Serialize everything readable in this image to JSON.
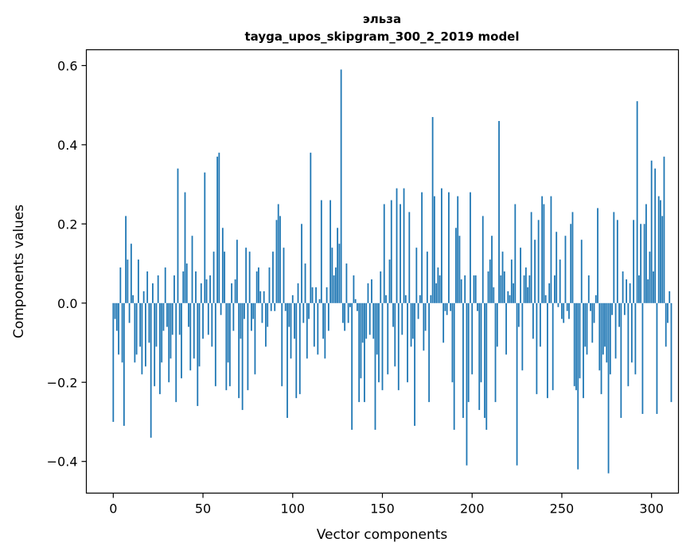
{
  "chart_data": {
    "type": "bar",
    "title": "эльза",
    "subtitle": "tayga_upos_skipgram_300_2_2019 model",
    "xlabel": "Vector components",
    "ylabel": "Components values",
    "xlim": [
      -15,
      315
    ],
    "ylim": [
      -0.48,
      0.64
    ],
    "xticks": [
      0,
      50,
      100,
      150,
      200,
      250,
      300
    ],
    "yticks": [
      -0.4,
      -0.2,
      0.0,
      0.2,
      0.4,
      0.6
    ],
    "ytick_labels": [
      "−0.4",
      "−0.2",
      "0.0",
      "0.2",
      "0.4",
      "0.6"
    ],
    "bar_color": "#1f77b4",
    "grid": false,
    "values": [
      -0.3,
      -0.04,
      -0.07,
      -0.13,
      0.09,
      -0.15,
      -0.31,
      0.22,
      0.11,
      -0.05,
      0.15,
      0.02,
      -0.15,
      -0.13,
      0.11,
      -0.11,
      -0.18,
      0.03,
      -0.16,
      0.08,
      -0.1,
      -0.34,
      0.05,
      -0.21,
      -0.11,
      0.07,
      -0.23,
      -0.15,
      -0.07,
      0.09,
      -0.06,
      -0.2,
      -0.14,
      -0.08,
      0.07,
      -0.25,
      0.34,
      -0.08,
      -0.19,
      0.08,
      0.28,
      0.1,
      -0.06,
      -0.17,
      0.17,
      -0.14,
      0.08,
      -0.26,
      -0.16,
      0.05,
      -0.09,
      0.33,
      0.06,
      -0.08,
      0.07,
      -0.11,
      0.13,
      -0.21,
      0.37,
      0.38,
      -0.03,
      0.19,
      0.13,
      -0.22,
      -0.15,
      -0.21,
      0.05,
      -0.07,
      0.06,
      0.16,
      -0.24,
      -0.09,
      -0.27,
      -0.04,
      0.14,
      -0.22,
      0.13,
      -0.07,
      -0.04,
      -0.18,
      0.08,
      0.09,
      0.03,
      -0.05,
      0.03,
      -0.11,
      -0.06,
      0.09,
      -0.02,
      0.13,
      -0.02,
      0.21,
      0.25,
      0.22,
      -0.21,
      0.14,
      -0.02,
      -0.29,
      -0.06,
      -0.14,
      0.02,
      -0.09,
      -0.24,
      0.05,
      -0.23,
      0.2,
      -0.05,
      0.1,
      -0.14,
      -0.04,
      0.38,
      0.04,
      -0.11,
      0.04,
      -0.13,
      0.01,
      0.26,
      -0.09,
      -0.14,
      0.04,
      -0.07,
      0.26,
      0.14,
      0.07,
      0.09,
      0.19,
      0.15,
      0.59,
      -0.05,
      -0.07,
      0.1,
      -0.05,
      -0.01,
      -0.32,
      0.07,
      0.01,
      -0.02,
      -0.25,
      -0.19,
      -0.1,
      -0.25,
      -0.09,
      0.05,
      -0.08,
      0.06,
      -0.09,
      -0.32,
      -0.13,
      -0.2,
      0.08,
      -0.22,
      0.25,
      0.02,
      -0.18,
      0.11,
      0.26,
      -0.06,
      -0.16,
      0.29,
      -0.22,
      0.25,
      -0.08,
      0.29,
      0.02,
      -0.2,
      0.23,
      -0.11,
      -0.09,
      -0.31,
      0.14,
      -0.04,
      0.02,
      0.28,
      -0.12,
      -0.07,
      0.13,
      -0.25,
      0.02,
      0.47,
      0.27,
      0.05,
      0.09,
      0.07,
      0.29,
      -0.1,
      -0.02,
      -0.03,
      0.28,
      -0.02,
      -0.2,
      -0.32,
      0.19,
      0.27,
      0.17,
      0.06,
      -0.29,
      0.07,
      -0.41,
      -0.25,
      0.28,
      -0.18,
      0.07,
      0.07,
      -0.02,
      -0.27,
      -0.2,
      0.22,
      -0.29,
      -0.32,
      0.08,
      0.11,
      0.17,
      0.04,
      -0.25,
      -0.11,
      0.46,
      0.07,
      0.13,
      0.08,
      -0.13,
      0.03,
      0.02,
      0.11,
      0.05,
      0.25,
      -0.41,
      -0.06,
      0.14,
      -0.17,
      0.07,
      0.09,
      0.04,
      0.07,
      0.23,
      -0.09,
      0.16,
      -0.23,
      0.21,
      -0.11,
      0.27,
      0.25,
      0.02,
      -0.24,
      0.05,
      0.27,
      -0.22,
      0.07,
      0.18,
      -0.01,
      0.11,
      -0.04,
      -0.05,
      0.17,
      -0.02,
      -0.04,
      0.2,
      0.23,
      -0.21,
      -0.22,
      -0.42,
      -0.19,
      0.16,
      -0.24,
      -0.11,
      -0.13,
      0.07,
      -0.02,
      -0.1,
      -0.05,
      0.02,
      0.24,
      -0.17,
      -0.23,
      -0.13,
      -0.11,
      -0.15,
      -0.43,
      -0.18,
      -0.03,
      0.23,
      -0.14,
      0.21,
      -0.06,
      -0.29,
      0.08,
      -0.03,
      0.06,
      -0.21,
      0.05,
      -0.15,
      0.21,
      -0.18,
      0.51,
      0.07,
      0.2,
      -0.28,
      0.2,
      0.25,
      0.06,
      0.13,
      0.36,
      0.08,
      0.34,
      -0.28,
      0.27,
      0.26,
      0.22,
      0.37,
      -0.11,
      -0.05,
      0.03,
      -0.25
    ]
  }
}
